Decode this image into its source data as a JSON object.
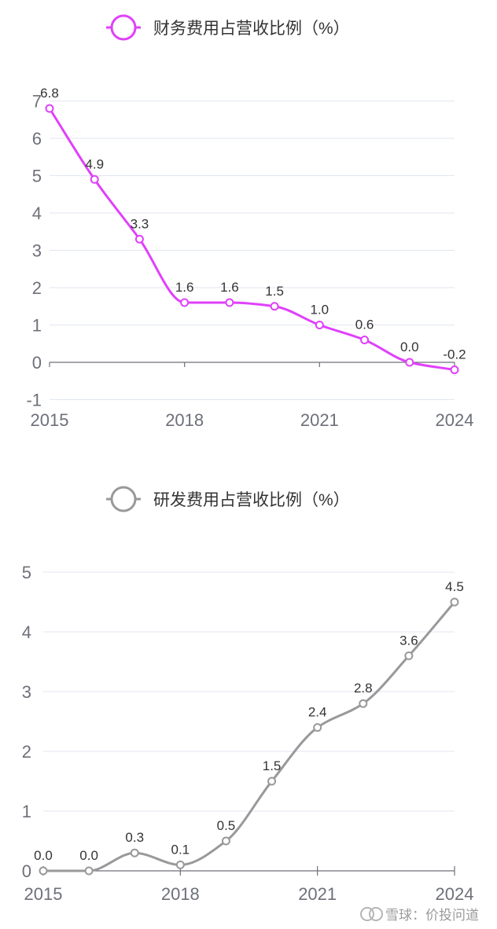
{
  "colors": {
    "finance_series": "#e040fb",
    "rd_series": "#999999",
    "grid": "#e0e6f1",
    "axis": "#6e7079",
    "text": "#333333"
  },
  "chart_data": [
    {
      "type": "line",
      "smooth": true,
      "series": [
        {
          "name": "财务费用占营收比例（%）",
          "color": "#e040fb",
          "values": [
            6.8,
            4.9,
            3.3,
            1.6,
            1.6,
            1.5,
            1.0,
            0.6,
            0.0,
            -0.2
          ]
        }
      ],
      "x": [
        2015,
        2016,
        2017,
        2018,
        2019,
        2020,
        2021,
        2022,
        2023,
        2024
      ],
      "data_labels": [
        "6.8",
        "4.9",
        "3.3",
        "1.6",
        "1.6",
        "1.5",
        "1.0",
        "0.6",
        "0.0",
        "-0.2"
      ],
      "x_tick_labels": [
        "2015",
        "2018",
        "2021",
        "2024"
      ],
      "y_tick_labels": [
        "-1",
        "0",
        "1",
        "2",
        "3",
        "4",
        "5",
        "6",
        "7"
      ],
      "ylim": [
        -1,
        7
      ],
      "grid": true,
      "legend_position": "top-center"
    },
    {
      "type": "line",
      "smooth": true,
      "series": [
        {
          "name": "研发费用占营收比例（%）",
          "color": "#999999",
          "values": [
            0.0,
            0.0,
            0.3,
            0.1,
            0.5,
            1.5,
            2.4,
            2.8,
            3.6,
            4.5
          ]
        }
      ],
      "x": [
        2015,
        2016,
        2017,
        2018,
        2019,
        2020,
        2021,
        2022,
        2023,
        2024
      ],
      "data_labels": [
        "0.0",
        "0.0",
        "0.3",
        "0.1",
        "0.5",
        "1.5",
        "2.4",
        "2.8",
        "3.6",
        "4.5"
      ],
      "x_tick_labels": [
        "2015",
        "2018",
        "2021",
        "2024"
      ],
      "y_tick_labels": [
        "0",
        "1",
        "2",
        "3",
        "4",
        "5"
      ],
      "ylim": [
        0,
        5
      ],
      "grid": true,
      "legend_position": "top-center"
    }
  ],
  "watermark": {
    "text": "雪球：价投问道"
  }
}
